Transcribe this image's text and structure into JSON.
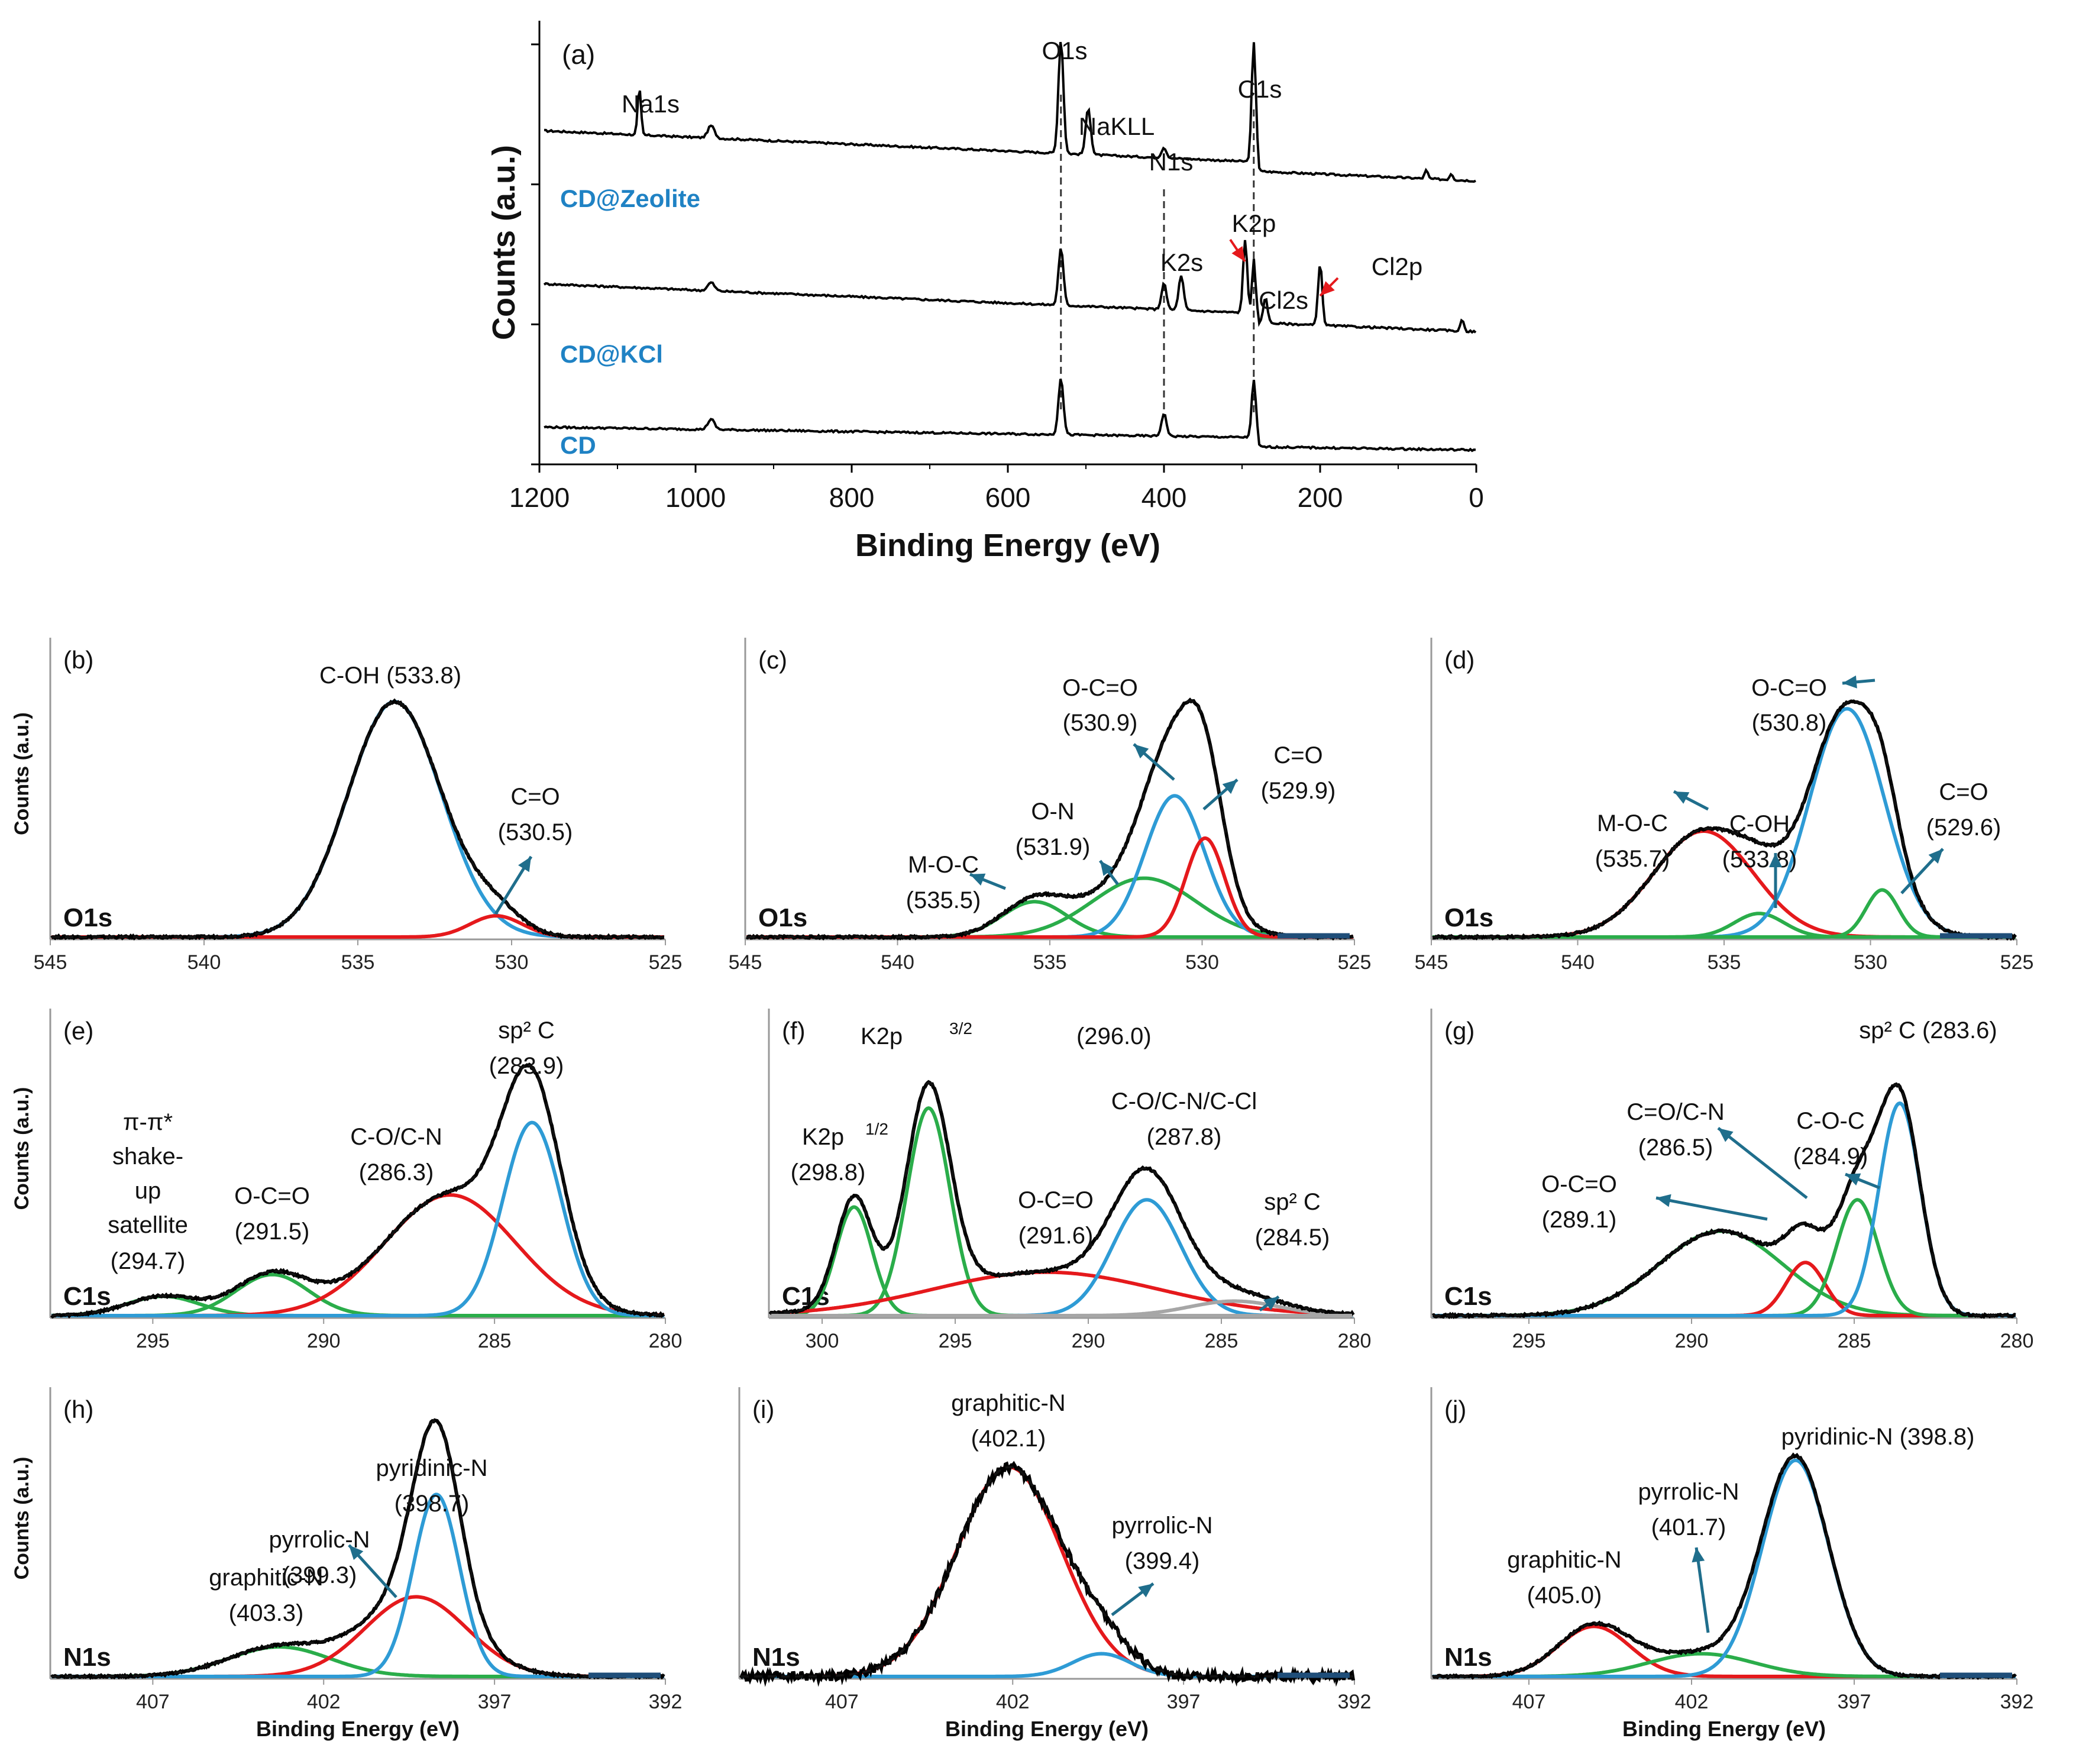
{
  "colors": {
    "fit": "#000000",
    "blue": "#2e9bd5",
    "red": "#e5191c",
    "green": "#2aad4a",
    "gray": "#a6a6a6",
    "navy": "#1f4e79",
    "arrow": "#1f6e8c",
    "label_blue": "#1f82c4",
    "red_arrow": "#e5191c"
  },
  "chart_data": [
    {
      "id": "a",
      "type": "line",
      "panel_label": "(a)",
      "xlabel": "Binding Energy (eV)",
      "ylabel": "Counts (a.u.)",
      "xlim": [
        1200,
        0
      ],
      "xticks": [
        "1200",
        "1000",
        "800",
        "600",
        "400",
        "200",
        "0"
      ],
      "series": [
        {
          "name": "CD@Zeolite",
          "baseline": 3.0,
          "peaks": [
            {
              "x": 1072,
              "h": 0.45,
              "w": 2
            },
            {
              "x": 980,
              "h": 0.12,
              "w": 4
            },
            {
              "x": 532,
              "h": 1.1,
              "w": 3
            },
            {
              "x": 497,
              "h": 0.45,
              "w": 3
            },
            {
              "x": 400,
              "h": 0.1,
              "w": 3
            },
            {
              "x": 285,
              "h": 1.15,
              "w": 2.5
            },
            {
              "x": 64,
              "h": 0.08,
              "w": 2
            },
            {
              "x": 32,
              "h": 0.06,
              "w": 2
            }
          ]
        },
        {
          "name": "CD@KCl",
          "baseline": 1.65,
          "peaks": [
            {
              "x": 980,
              "h": 0.08,
              "w": 4
            },
            {
              "x": 532,
              "h": 0.55,
              "w": 3
            },
            {
              "x": 400,
              "h": 0.25,
              "w": 3
            },
            {
              "x": 378,
              "h": 0.33,
              "w": 3
            },
            {
              "x": 296,
              "h": 0.7,
              "w": 2.5
            },
            {
              "x": 285,
              "h": 0.52,
              "w": 2
            },
            {
              "x": 270,
              "h": 0.25,
              "w": 2.5
            },
            {
              "x": 200,
              "h": 0.6,
              "w": 2.5
            },
            {
              "x": 18,
              "h": 0.12,
              "w": 2
            }
          ]
        },
        {
          "name": "CD",
          "baseline": 0.4,
          "peaks": [
            {
              "x": 980,
              "h": 0.1,
              "w": 4
            },
            {
              "x": 532,
              "h": 0.55,
              "w": 3
            },
            {
              "x": 400,
              "h": 0.22,
              "w": 3
            },
            {
              "x": 285,
              "h": 0.55,
              "w": 2.5
            }
          ]
        }
      ],
      "annotations": [
        "Na1s",
        "O1s",
        "NaKLL",
        "N1s",
        "C1s",
        "K2p",
        "K2s",
        "Cl2s",
        "Cl2p"
      ],
      "dashed_lines_x": [
        532,
        400,
        285
      ]
    },
    {
      "id": "b",
      "type": "line",
      "panel_label": "(b)",
      "region": "O1s",
      "ylabel": "Counts (a.u.)",
      "xlim": [
        545,
        525
      ],
      "xticks": [
        "545",
        "540",
        "535",
        "530",
        "525"
      ],
      "components": [
        {
          "label": "C-OH (533.8)",
          "center": 533.8,
          "height": 1.0,
          "fwhm": 3.6,
          "color": "blue"
        },
        {
          "label": "C=O (530.5)",
          "center": 530.5,
          "height": 0.09,
          "fwhm": 2.0,
          "color": "red"
        }
      ],
      "annotations": [
        "C-OH (533.8)",
        "C=O",
        "(530.5)"
      ]
    },
    {
      "id": "c",
      "type": "line",
      "panel_label": "(c)",
      "region": "O1s",
      "ylabel": "",
      "xlim": [
        545,
        525
      ],
      "xticks": [
        "545",
        "540",
        "535",
        "530",
        "525"
      ],
      "components": [
        {
          "label": "M-O-C (535.5)",
          "center": 535.5,
          "height": 0.15,
          "fwhm": 2.5,
          "color": "green"
        },
        {
          "label": "O-N (531.9)",
          "center": 531.9,
          "height": 0.25,
          "fwhm": 4.0,
          "color": "green"
        },
        {
          "label": "O-C=O (530.9)",
          "center": 530.9,
          "height": 0.6,
          "fwhm": 2.3,
          "color": "blue"
        },
        {
          "label": "C=O (529.9)",
          "center": 529.9,
          "height": 0.42,
          "fwhm": 1.5,
          "color": "red"
        }
      ],
      "annotations": [
        "M-O-C",
        "(535.5)",
        "O-N",
        "(531.9)",
        "O-C=O",
        "(530.9)",
        "C=O",
        "(529.9)"
      ]
    },
    {
      "id": "d",
      "type": "line",
      "panel_label": "(d)",
      "region": "O1s",
      "ylabel": "",
      "xlim": [
        545,
        525
      ],
      "xticks": [
        "545",
        "540",
        "535",
        "530",
        "525"
      ],
      "components": [
        {
          "label": "M-O-C (535.7)",
          "center": 535.7,
          "height": 0.45,
          "fwhm": 4.0,
          "color": "red"
        },
        {
          "label": "C-OH (533.8)",
          "center": 533.8,
          "height": 0.1,
          "fwhm": 2.0,
          "color": "green"
        },
        {
          "label": "O-C=O (530.8)",
          "center": 530.8,
          "height": 0.97,
          "fwhm": 3.0,
          "color": "blue"
        },
        {
          "label": "C=O (529.6)",
          "center": 529.6,
          "height": 0.2,
          "fwhm": 1.3,
          "color": "green"
        }
      ],
      "annotations": [
        "M-O-C",
        "(535.7)",
        "C-OH",
        "(533.8)",
        "O-C=O",
        "(530.8)",
        "C=O",
        "(529.6)"
      ]
    },
    {
      "id": "e",
      "type": "line",
      "panel_label": "(e)",
      "region": "C1s",
      "ylabel": "Counts (a.u.)",
      "xlim": [
        298,
        280
      ],
      "xticks": [
        "295",
        "290",
        "285",
        "280"
      ],
      "components": [
        {
          "label": "π-π* shake-up satellite (294.7)",
          "center": 294.7,
          "height": 0.08,
          "fwhm": 2.5,
          "color": "green"
        },
        {
          "label": "O-C=O (291.5)",
          "center": 291.5,
          "height": 0.17,
          "fwhm": 2.5,
          "color": "green"
        },
        {
          "label": "C-O/C-N (286.3)",
          "center": 286.3,
          "height": 0.5,
          "fwhm": 4.5,
          "color": "red"
        },
        {
          "label": "sp2 C (283.9)",
          "center": 283.9,
          "height": 0.8,
          "fwhm": 2.0,
          "color": "blue"
        }
      ],
      "annotations": [
        "π-π*",
        "shake-",
        "up",
        "satellite",
        "(294.7)",
        "O-C=O",
        "(291.5)",
        "C-O/C-N",
        "(286.3)",
        "sp² C",
        "(283.9)"
      ]
    },
    {
      "id": "f",
      "type": "line",
      "panel_label": "(f)",
      "region": "C1s",
      "ylabel": "",
      "xlim": [
        302,
        280
      ],
      "xticks": [
        "300",
        "295",
        "290",
        "285",
        "280"
      ],
      "components": [
        {
          "label": "K2p1/2 (298.8)",
          "center": 298.8,
          "height": 0.45,
          "fwhm": 1.6,
          "color": "green"
        },
        {
          "label": "K2p3/2 (296.0)",
          "center": 296.0,
          "height": 0.86,
          "fwhm": 1.9,
          "color": "green"
        },
        {
          "label": "O-C=O (291.6)",
          "center": 291.6,
          "height": 0.18,
          "fwhm": 10.0,
          "color": "red"
        },
        {
          "label": "C-O/C-N/C-Cl (287.8)",
          "center": 287.8,
          "height": 0.48,
          "fwhm": 3.0,
          "color": "blue"
        },
        {
          "label": "sp2 C (284.5)",
          "center": 284.5,
          "height": 0.06,
          "fwhm": 4.0,
          "color": "gray"
        }
      ],
      "annotations": [
        "K2p",
        "3/2",
        "(296.0)",
        "K2p",
        "1/2",
        "(298.8)",
        "O-C=O",
        "(291.6)",
        "C-O/C-N/C-Cl",
        "(287.8)",
        "sp² C",
        "(284.5)"
      ]
    },
    {
      "id": "g",
      "type": "line",
      "panel_label": "(g)",
      "region": "C1s",
      "ylabel": "",
      "xlim": [
        298,
        280
      ],
      "xticks": [
        "295",
        "290",
        "285",
        "280"
      ],
      "components": [
        {
          "label": "O-C=O (289.1)",
          "center": 289.1,
          "height": 0.35,
          "fwhm": 4.5,
          "color": "green"
        },
        {
          "label": "C=O/C-N (286.5)",
          "center": 286.5,
          "height": 0.22,
          "fwhm": 1.4,
          "color": "red"
        },
        {
          "label": "C-O-C (284.9)",
          "center": 284.9,
          "height": 0.48,
          "fwhm": 1.5,
          "color": "green"
        },
        {
          "label": "sp2 C (283.6)",
          "center": 283.6,
          "height": 0.88,
          "fwhm": 1.5,
          "color": "blue"
        }
      ],
      "annotations": [
        "O-C=O",
        "(289.1)",
        "C=O/C-N",
        "(286.5)",
        "C-O-C",
        "(284.9)",
        "sp² C (283.6)"
      ]
    },
    {
      "id": "h",
      "type": "line",
      "panel_label": "(h)",
      "region": "N1s",
      "ylabel": "Counts (a.u.)",
      "xlabel": "Binding Energy (eV)",
      "xlim": [
        410,
        392
      ],
      "xticks": [
        "407",
        "402",
        "397",
        "392"
      ],
      "components": [
        {
          "label": "graphitic-N (403.3)",
          "center": 403.3,
          "height": 0.13,
          "fwhm": 3.5,
          "color": "green"
        },
        {
          "label": "pyrrolic-N (399.3)",
          "center": 399.3,
          "height": 0.35,
          "fwhm": 3.5,
          "color": "red"
        },
        {
          "label": "pyridinic-N (398.7)",
          "center": 398.7,
          "height": 0.8,
          "fwhm": 1.6,
          "color": "blue"
        }
      ],
      "annotations": [
        "pyridinic-N",
        "(398.7)",
        "pyrrolic-N",
        "(399.3)",
        "graphitic-N",
        "(403.3)"
      ]
    },
    {
      "id": "i",
      "type": "line",
      "panel_label": "(i)",
      "region": "N1s",
      "ylabel": "",
      "xlabel": "Binding Energy (eV)",
      "xlim": [
        410,
        392
      ],
      "xticks": [
        "407",
        "402",
        "397",
        "392"
      ],
      "components": [
        {
          "label": "graphitic-N (402.1)",
          "center": 402.1,
          "height": 0.92,
          "fwhm": 3.6,
          "color": "red"
        },
        {
          "label": "pyrrolic-N (399.4)",
          "center": 399.4,
          "height": 0.1,
          "fwhm": 2.0,
          "color": "blue"
        }
      ],
      "annotations": [
        "graphitic-N",
        "(402.1)",
        "pyrrolic-N",
        "(399.4)"
      ]
    },
    {
      "id": "j",
      "type": "line",
      "panel_label": "(j)",
      "region": "N1s",
      "ylabel": "",
      "xlabel": "Binding Energy (eV)",
      "xlim": [
        410,
        392
      ],
      "xticks": [
        "407",
        "402",
        "397",
        "392"
      ],
      "components": [
        {
          "label": "graphitic-N (405.0)",
          "center": 405.0,
          "height": 0.22,
          "fwhm": 2.6,
          "color": "red"
        },
        {
          "label": "pyrrolic-N (401.7)",
          "center": 401.7,
          "height": 0.1,
          "fwhm": 3.8,
          "color": "green"
        },
        {
          "label": "pyridinic-N (398.8)",
          "center": 398.8,
          "height": 0.95,
          "fwhm": 2.4,
          "color": "blue"
        }
      ],
      "annotations": [
        "pyridinic-N (398.8)",
        "pyrrolic-N",
        "(401.7)",
        "graphitic-N",
        "(405.0)"
      ]
    }
  ]
}
